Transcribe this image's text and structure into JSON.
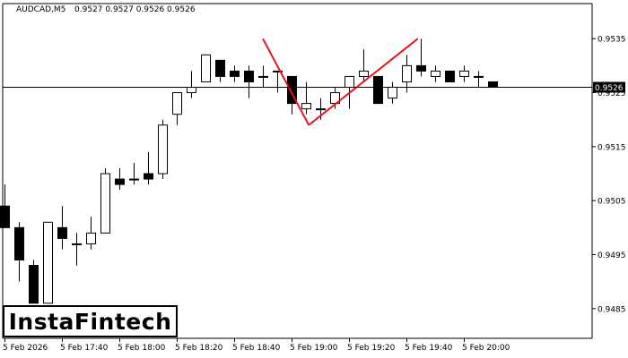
{
  "header": {
    "symbol": "AUDCAD,M5",
    "ohlc": "0.9527 0.9527 0.9526 0.9526"
  },
  "logo": {
    "text": "InstaFintech"
  },
  "colors": {
    "pattern_line": "#e8141d",
    "candle_border": "#000000",
    "bull_fill": "#ffffff",
    "bear_fill": "#000000",
    "price_line": "#000000",
    "price_tag_bg": "#000000",
    "price_tag_fg": "#ffffff"
  },
  "chart_data": {
    "type": "candlestick",
    "symbol": "AUDCAD",
    "timeframe": "M5",
    "y_ticks": [
      "0.9535",
      "0.9525",
      "0.9515",
      "0.9505",
      "0.9495",
      "0.9485"
    ],
    "ylim": [
      0.94795,
      0.95415
    ],
    "current_price": "0.9526",
    "x_tick_labels": [
      "5 Feb 2026",
      "5 Feb 17:40",
      "5 Feb 18:00",
      "5 Feb 18:20",
      "5 Feb 18:40",
      "5 Feb 19:00",
      "5 Feb 19:20",
      "5 Feb 19:40",
      "5 Feb 20:00"
    ],
    "x_tick_candle_index": [
      0,
      4,
      8,
      12,
      16,
      20,
      24,
      28,
      32
    ],
    "candles": [
      {
        "o": 0.9504,
        "h": 0.9508,
        "l": 0.95,
        "c": 0.95
      },
      {
        "o": 0.95,
        "h": 0.9501,
        "l": 0.949,
        "c": 0.9494
      },
      {
        "o": 0.9493,
        "h": 0.9494,
        "l": 0.9486,
        "c": 0.9486
      },
      {
        "o": 0.9486,
        "h": 0.9501,
        "l": 0.9486,
        "c": 0.9501
      },
      {
        "o": 0.95,
        "h": 0.9504,
        "l": 0.9496,
        "c": 0.9498
      },
      {
        "o": 0.9497,
        "h": 0.9499,
        "l": 0.9493,
        "c": 0.9497
      },
      {
        "o": 0.9497,
        "h": 0.9502,
        "l": 0.9496,
        "c": 0.9499
      },
      {
        "o": 0.9499,
        "h": 0.9511,
        "l": 0.9499,
        "c": 0.951
      },
      {
        "o": 0.9509,
        "h": 0.9511,
        "l": 0.9507,
        "c": 0.9508
      },
      {
        "o": 0.9509,
        "h": 0.9512,
        "l": 0.9508,
        "c": 0.9509
      },
      {
        "o": 0.951,
        "h": 0.9514,
        "l": 0.9508,
        "c": 0.9509
      },
      {
        "o": 0.951,
        "h": 0.952,
        "l": 0.9509,
        "c": 0.9519
      },
      {
        "o": 0.9521,
        "h": 0.9525,
        "l": 0.9519,
        "c": 0.9525
      },
      {
        "o": 0.9525,
        "h": 0.9529,
        "l": 0.9524,
        "c": 0.9526
      },
      {
        "o": 0.9527,
        "h": 0.9532,
        "l": 0.9527,
        "c": 0.9532
      },
      {
        "o": 0.9531,
        "h": 0.9531,
        "l": 0.9527,
        "c": 0.9528
      },
      {
        "o": 0.9529,
        "h": 0.953,
        "l": 0.9527,
        "c": 0.9528
      },
      {
        "o": 0.9529,
        "h": 0.953,
        "l": 0.9524,
        "c": 0.9527
      },
      {
        "o": 0.9528,
        "h": 0.953,
        "l": 0.9526,
        "c": 0.9528
      },
      {
        "o": 0.9529,
        "h": 0.9529,
        "l": 0.9525,
        "c": 0.9529
      },
      {
        "o": 0.9528,
        "h": 0.9528,
        "l": 0.9521,
        "c": 0.9523
      },
      {
        "o": 0.9522,
        "h": 0.9527,
        "l": 0.9521,
        "c": 0.9523
      },
      {
        "o": 0.9522,
        "h": 0.9524,
        "l": 0.952,
        "c": 0.9522
      },
      {
        "o": 0.9523,
        "h": 0.9526,
        "l": 0.9522,
        "c": 0.9525
      },
      {
        "o": 0.9526,
        "h": 0.9528,
        "l": 0.9522,
        "c": 0.9528
      },
      {
        "o": 0.9528,
        "h": 0.9533,
        "l": 0.9527,
        "c": 0.9529
      },
      {
        "o": 0.9528,
        "h": 0.9528,
        "l": 0.9523,
        "c": 0.9523
      },
      {
        "o": 0.9524,
        "h": 0.9527,
        "l": 0.9523,
        "c": 0.9526
      },
      {
        "o": 0.9527,
        "h": 0.9532,
        "l": 0.9525,
        "c": 0.953
      },
      {
        "o": 0.953,
        "h": 0.9535,
        "l": 0.9528,
        "c": 0.9529
      },
      {
        "o": 0.9528,
        "h": 0.953,
        "l": 0.9527,
        "c": 0.9529
      },
      {
        "o": 0.9529,
        "h": 0.9529,
        "l": 0.9527,
        "c": 0.9527
      },
      {
        "o": 0.9528,
        "h": 0.953,
        "l": 0.9527,
        "c": 0.9529
      },
      {
        "o": 0.9528,
        "h": 0.9529,
        "l": 0.9526,
        "c": 0.9528
      },
      {
        "o": 0.9527,
        "h": 0.9527,
        "l": 0.9526,
        "c": 0.9526
      }
    ],
    "pattern_lines": [
      {
        "from": {
          "candle": 18.0,
          "price": 0.9535
        },
        "to": {
          "candle": 21.2,
          "price": 0.9519
        }
      },
      {
        "from": {
          "candle": 21.2,
          "price": 0.9519
        },
        "to": {
          "candle": 28.8,
          "price": 0.9535
        }
      }
    ],
    "grid": false
  }
}
